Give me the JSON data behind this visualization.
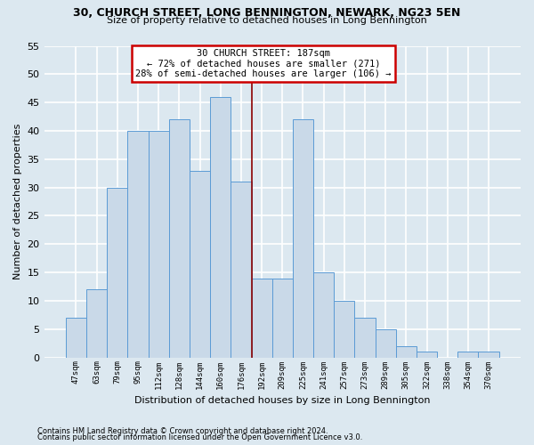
{
  "title": "30, CHURCH STREET, LONG BENNINGTON, NEWARK, NG23 5EN",
  "subtitle": "Size of property relative to detached houses in Long Bennington",
  "xlabel": "Distribution of detached houses by size in Long Bennington",
  "ylabel": "Number of detached properties",
  "categories": [
    "47sqm",
    "63sqm",
    "79sqm",
    "95sqm",
    "112sqm",
    "128sqm",
    "144sqm",
    "160sqm",
    "176sqm",
    "192sqm",
    "209sqm",
    "225sqm",
    "241sqm",
    "257sqm",
    "273sqm",
    "289sqm",
    "305sqm",
    "322sqm",
    "338sqm",
    "354sqm",
    "370sqm"
  ],
  "values": [
    7,
    12,
    30,
    40,
    40,
    42,
    33,
    46,
    31,
    14,
    14,
    42,
    15,
    10,
    7,
    5,
    2,
    1,
    0,
    1,
    1
  ],
  "bar_color": "#c9d9e8",
  "bar_edge_color": "#5b9bd5",
  "annotation_line_color": "#8b0000",
  "annotation_text_line1": "30 CHURCH STREET: 187sqm",
  "annotation_text_line2": "← 72% of detached houses are smaller (271)",
  "annotation_text_line3": "28% of semi-detached houses are larger (106) →",
  "annotation_box_facecolor": "#ffffff",
  "annotation_box_edgecolor": "#cc0000",
  "ylim": [
    0,
    55
  ],
  "yticks": [
    0,
    5,
    10,
    15,
    20,
    25,
    30,
    35,
    40,
    45,
    50,
    55
  ],
  "footnote1": "Contains HM Land Registry data © Crown copyright and database right 2024.",
  "footnote2": "Contains public sector information licensed under the Open Government Licence v3.0.",
  "bg_color": "#dce8f0",
  "grid_color": "#ffffff",
  "title_fontsize": 9,
  "subtitle_fontsize": 8
}
